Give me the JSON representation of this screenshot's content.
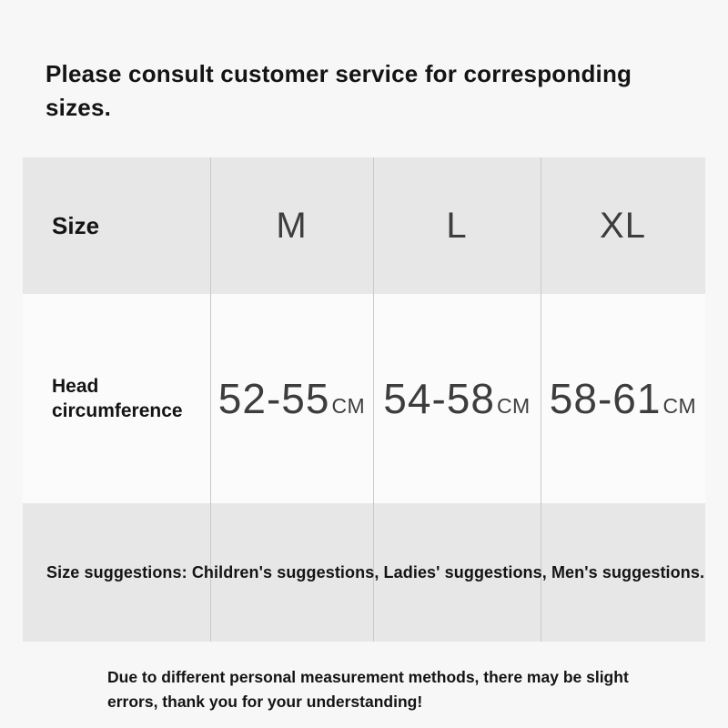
{
  "page": {
    "heading": "Please consult customer service for corresponding\nsizes.",
    "footer": "Due to different personal measurement methods, there may be slight\nerrors, thank you for your understanding!"
  },
  "size_table": {
    "header": {
      "label": "Size",
      "columns": [
        "M",
        "L",
        "XL"
      ]
    },
    "row": {
      "label": "Head\ncircumference",
      "values": [
        {
          "num": "52-55",
          "unit": "CM"
        },
        {
          "num": "54-58",
          "unit": "CM"
        },
        {
          "num": "58-61",
          "unit": "CM"
        }
      ]
    },
    "suggestions": "Size suggestions: Children's suggestions, Ladies' suggestions, Men's suggestions."
  },
  "colors": {
    "page_bg": "#f7f7f7",
    "row_gray": "#e7e7e7",
    "row_light": "#fbfbfb",
    "divider": "#c9c9c9",
    "text_dark": "#141414",
    "text_thin": "#3d3d3d"
  }
}
